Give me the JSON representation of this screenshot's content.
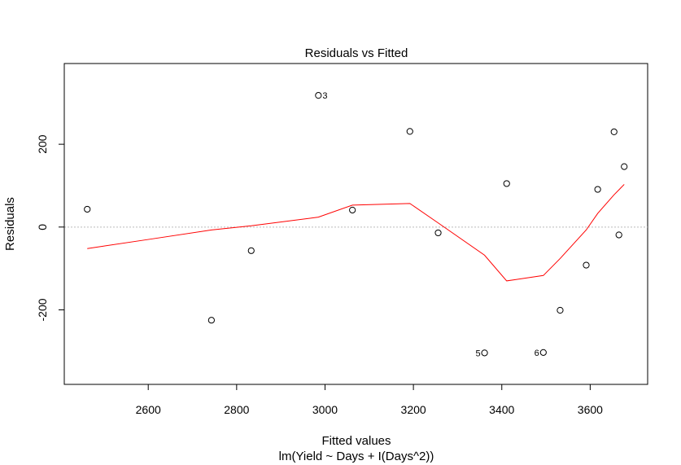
{
  "chart_data": {
    "type": "scatter",
    "title": "Residuals vs Fitted",
    "xlabel": "Fitted values",
    "subtitle": "lm(Yield ~ Days + I(Days^2))",
    "ylabel": "Residuals",
    "xlim": [
      2410,
      3730
    ],
    "ylim": [
      -380,
      395
    ],
    "xticks": [
      2600,
      2800,
      3000,
      3200,
      3400,
      3600
    ],
    "yticks": [
      -200,
      0,
      200
    ],
    "ytick_labels": [
      "-200",
      "0",
      "200"
    ],
    "grid": false,
    "reference_line_y": 0,
    "points": [
      {
        "x": 2462,
        "y": 43,
        "label": ""
      },
      {
        "x": 2743,
        "y": -225,
        "label": ""
      },
      {
        "x": 2833,
        "y": -57,
        "label": ""
      },
      {
        "x": 2985,
        "y": 318,
        "label": "3"
      },
      {
        "x": 3062,
        "y": 41,
        "label": ""
      },
      {
        "x": 3192,
        "y": 231,
        "label": ""
      },
      {
        "x": 3256,
        "y": -14,
        "label": ""
      },
      {
        "x": 3361,
        "y": -304,
        "label": "5"
      },
      {
        "x": 3411,
        "y": 105,
        "label": ""
      },
      {
        "x": 3494,
        "y": -303,
        "label": "6"
      },
      {
        "x": 3532,
        "y": -201,
        "label": ""
      },
      {
        "x": 3591,
        "y": -92,
        "label": ""
      },
      {
        "x": 3617,
        "y": 91,
        "label": ""
      },
      {
        "x": 3654,
        "y": 230,
        "label": ""
      },
      {
        "x": 3665,
        "y": -19,
        "label": ""
      },
      {
        "x": 3677,
        "y": 146,
        "label": ""
      }
    ],
    "smooth_line": {
      "x": [
        2462,
        2600,
        2743,
        2833,
        2985,
        3062,
        3192,
        3256,
        3361,
        3411,
        3494,
        3532,
        3591,
        3617,
        3654,
        3677
      ],
      "y": [
        -52,
        -30,
        -7,
        3,
        24,
        53,
        57,
        10,
        -68,
        -130,
        -117,
        -76,
        -7,
        33,
        78,
        103
      ]
    },
    "colors": {
      "points": "#000000",
      "smooth_line": "#ff0000",
      "reference_line": "#bbbbbb",
      "axes": "#000000"
    }
  }
}
